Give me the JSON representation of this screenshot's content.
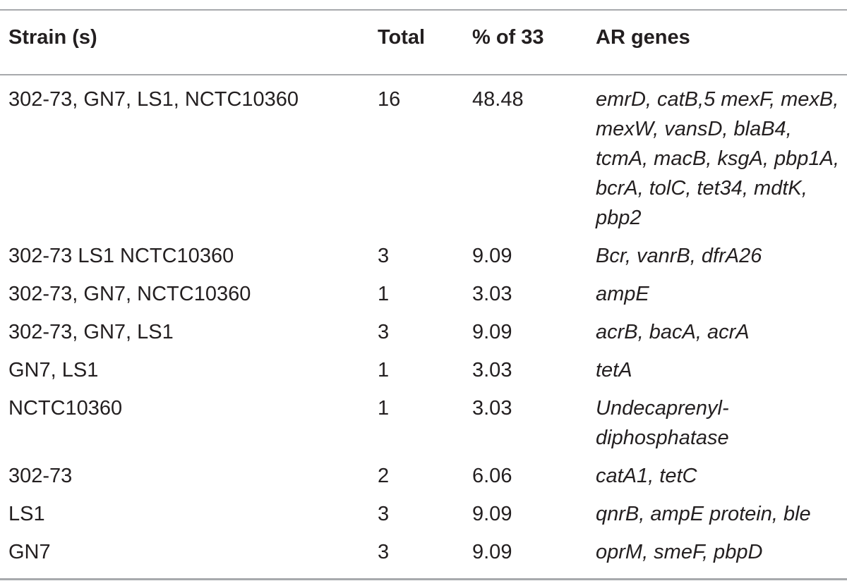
{
  "table": {
    "columns": [
      "Strain (s)",
      "Total",
      "% of 33",
      "AR genes"
    ],
    "rows": [
      {
        "strain": "302-73, GN7, LS1, NCTC10360",
        "total": "16",
        "percent": "48.48",
        "genes": "emrD, catB,5 mexF, mexB, mexW, vansD, blaB4, tcmA, macB, ksgA, pbp1A, bcrA, tolC, tet34, mdtK, pbp2"
      },
      {
        "strain": "302-73 LS1 NCTC10360",
        "total": "3",
        "percent": "9.09",
        "genes": "Bcr, vanrB, dfrA26"
      },
      {
        "strain": "302-73, GN7, NCTC10360",
        "total": "1",
        "percent": "3.03",
        "genes": "ampE"
      },
      {
        "strain": "302-73, GN7, LS1",
        "total": "3",
        "percent": "9.09",
        "genes": "acrB, bacA, acrA"
      },
      {
        "strain": "GN7, LS1",
        "total": "1",
        "percent": "3.03",
        "genes": "tetA"
      },
      {
        "strain": "NCTC10360",
        "total": "1",
        "percent": "3.03",
        "genes": "Undecaprenyl-diphosphatase"
      },
      {
        "strain": "302-73",
        "total": "2",
        "percent": "6.06",
        "genes": "catA1, tetC"
      },
      {
        "strain": "LS1",
        "total": "3",
        "percent": "9.09",
        "genes": "qnrB, ampE protein, ble"
      },
      {
        "strain": "GN7",
        "total": "3",
        "percent": "9.09",
        "genes": "oprM, smeF, pbpD"
      }
    ]
  }
}
